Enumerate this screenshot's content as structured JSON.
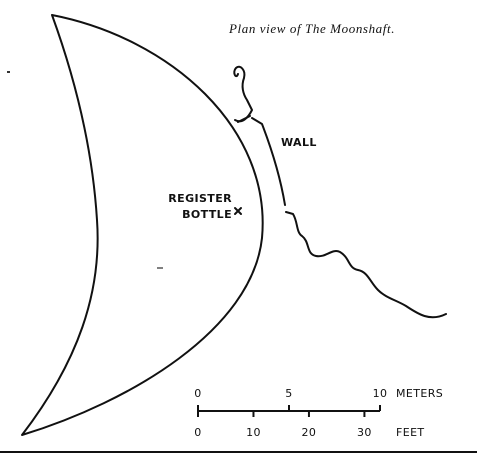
{
  "caption": "Plan view of The Moonshaft.",
  "labels": {
    "wall": "WALL",
    "register_line1": "REGISTER",
    "register_line2": "BOTTLE"
  },
  "scale": {
    "meters": {
      "ticks": [
        0,
        5,
        10
      ],
      "unit": "METERS"
    },
    "feet": {
      "ticks": [
        0,
        10,
        20,
        30
      ],
      "unit": "FEET"
    }
  }
}
